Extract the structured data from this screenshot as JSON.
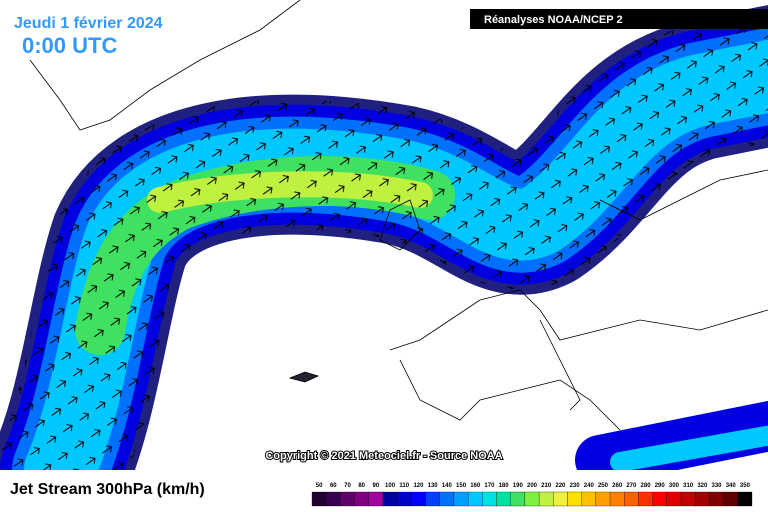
{
  "header": {
    "date": "Jeudi 1 février 2024",
    "time": "0:00 UTC",
    "source_box": "Réanalyses NOAA/NCEP 2"
  },
  "copyright": "Copyright © 2021 Meteociel.fr - Source NOAA",
  "legend": {
    "title": "Jet Stream 300hPa (km/h)",
    "labels": [
      "50",
      "60",
      "70",
      "80",
      "90",
      "100",
      "110",
      "120",
      "130",
      "140",
      "150",
      "160",
      "170",
      "180",
      "190",
      "200",
      "210",
      "220",
      "230",
      "240",
      "250",
      "260",
      "270",
      "280",
      "290",
      "300",
      "310",
      "320",
      "330",
      "340",
      "350"
    ],
    "colors": [
      "#200030",
      "#3a0050",
      "#60006a",
      "#800080",
      "#a000a0",
      "#0000a0",
      "#0000c8",
      "#0000ff",
      "#0040ff",
      "#0070ff",
      "#00a0ff",
      "#00c8ff",
      "#00e0e0",
      "#00e0a0",
      "#40e060",
      "#80f040",
      "#c0f040",
      "#f0f040",
      "#ffe000",
      "#ffc000",
      "#ffa000",
      "#ff8000",
      "#ff6000",
      "#ff3000",
      "#ff0000",
      "#e00000",
      "#c00000",
      "#a00000",
      "#800000",
      "#600000",
      "#000000"
    ]
  }
}
